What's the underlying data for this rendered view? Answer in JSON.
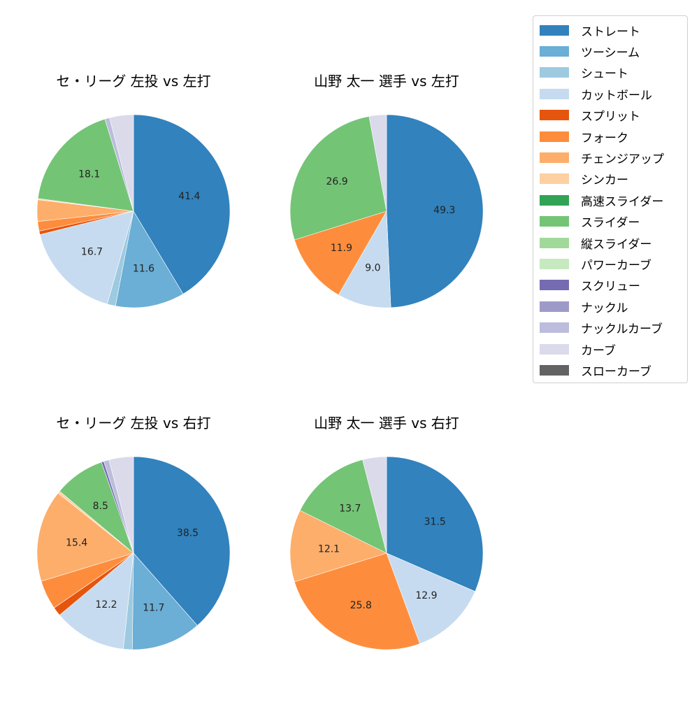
{
  "legend": {
    "items": [
      {
        "label": "ストレート",
        "color": "#3182bd"
      },
      {
        "label": "ツーシーム",
        "color": "#6baed6"
      },
      {
        "label": "シュート",
        "color": "#9ecae1"
      },
      {
        "label": "カットボール",
        "color": "#c6dbef"
      },
      {
        "label": "スプリット",
        "color": "#e6550d"
      },
      {
        "label": "フォーク",
        "color": "#fd8d3c"
      },
      {
        "label": "チェンジアップ",
        "color": "#fdae6b"
      },
      {
        "label": "シンカー",
        "color": "#fdd0a2"
      },
      {
        "label": "高速スライダー",
        "color": "#31a354"
      },
      {
        "label": "スライダー",
        "color": "#74c476"
      },
      {
        "label": "縦スライダー",
        "color": "#a1d99b"
      },
      {
        "label": "パワーカーブ",
        "color": "#c7e9c0"
      },
      {
        "label": "スクリュー",
        "color": "#756bb1"
      },
      {
        "label": "ナックル",
        "color": "#9e9ac8"
      },
      {
        "label": "ナックルカーブ",
        "color": "#bcbddc"
      },
      {
        "label": "カーブ",
        "color": "#dadaeb"
      },
      {
        "label": "スローカーブ",
        "color": "#636363"
      }
    ]
  },
  "chart_data": [
    {
      "type": "pie",
      "title": "セ・リーグ 左投 vs 左打",
      "slices": [
        {
          "label": "ストレート",
          "value": 41.4,
          "show_label": true
        },
        {
          "label": "ツーシーム",
          "value": 11.6,
          "show_label": true
        },
        {
          "label": "シュート",
          "value": 1.4,
          "show_label": false
        },
        {
          "label": "カットボール",
          "value": 16.7,
          "show_label": true
        },
        {
          "label": "スプリット",
          "value": 0.6,
          "show_label": false
        },
        {
          "label": "フォーク",
          "value": 1.6,
          "show_label": false
        },
        {
          "label": "チェンジアップ",
          "value": 3.6,
          "show_label": false
        },
        {
          "label": "シンカー",
          "value": 0.2,
          "show_label": false
        },
        {
          "label": "スライダー",
          "value": 18.1,
          "show_label": true
        },
        {
          "label": "ナックルカーブ",
          "value": 0.8,
          "show_label": false
        },
        {
          "label": "カーブ",
          "value": 4.0,
          "show_label": false
        }
      ]
    },
    {
      "type": "pie",
      "title": "山野 太一 選手 vs 左打",
      "slices": [
        {
          "label": "ストレート",
          "value": 49.3,
          "show_label": true
        },
        {
          "label": "カットボール",
          "value": 9.0,
          "show_label": true
        },
        {
          "label": "フォーク",
          "value": 11.9,
          "show_label": true
        },
        {
          "label": "スライダー",
          "value": 26.9,
          "show_label": true
        },
        {
          "label": "カーブ",
          "value": 2.9,
          "show_label": false
        }
      ]
    },
    {
      "type": "pie",
      "title": "セ・リーグ 左投 vs 右打",
      "slices": [
        {
          "label": "ストレート",
          "value": 38.5,
          "show_label": true
        },
        {
          "label": "ツーシーム",
          "value": 11.7,
          "show_label": true
        },
        {
          "label": "シュート",
          "value": 1.5,
          "show_label": false
        },
        {
          "label": "カットボール",
          "value": 12.2,
          "show_label": true
        },
        {
          "label": "スプリット",
          "value": 1.5,
          "show_label": false
        },
        {
          "label": "フォーク",
          "value": 4.9,
          "show_label": false
        },
        {
          "label": "チェンジアップ",
          "value": 15.4,
          "show_label": true
        },
        {
          "label": "シンカー",
          "value": 0.4,
          "show_label": false
        },
        {
          "label": "スライダー",
          "value": 8.5,
          "show_label": true
        },
        {
          "label": "スクリュー",
          "value": 0.4,
          "show_label": false
        },
        {
          "label": "ナックルカーブ",
          "value": 0.9,
          "show_label": false
        },
        {
          "label": "カーブ",
          "value": 4.1,
          "show_label": false
        }
      ]
    },
    {
      "type": "pie",
      "title": "山野 太一 選手 vs 右打",
      "slices": [
        {
          "label": "ストレート",
          "value": 31.5,
          "show_label": true
        },
        {
          "label": "カットボール",
          "value": 12.9,
          "show_label": true
        },
        {
          "label": "フォーク",
          "value": 25.8,
          "show_label": true
        },
        {
          "label": "チェンジアップ",
          "value": 12.1,
          "show_label": true
        },
        {
          "label": "スライダー",
          "value": 13.7,
          "show_label": true
        },
        {
          "label": "カーブ",
          "value": 4.0,
          "show_label": false
        }
      ]
    }
  ]
}
